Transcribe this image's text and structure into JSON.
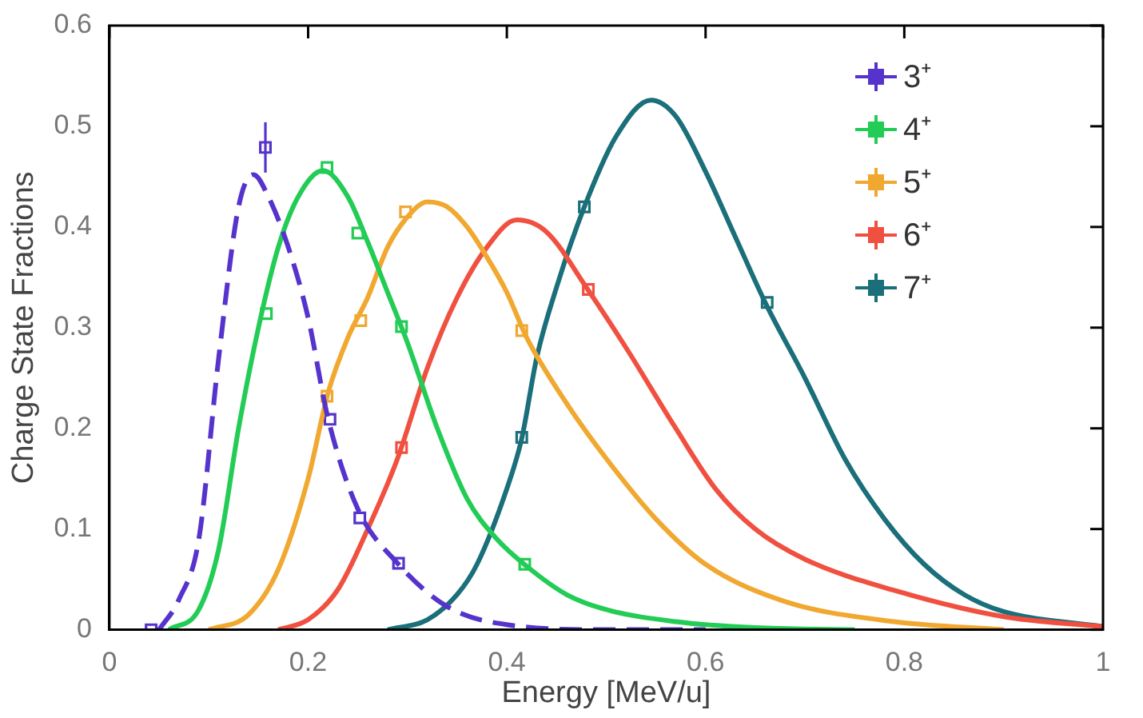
{
  "chart_data": {
    "type": "scatter",
    "xlabel": "Energy [MeV/u]",
    "ylabel": "Charge State Fractions",
    "xlim": [
      0,
      1
    ],
    "ylim": [
      0,
      0.6
    ],
    "xticks": [
      0,
      0.2,
      0.4,
      0.6,
      0.8,
      1
    ],
    "yticks": [
      0,
      0.1,
      0.2,
      0.3,
      0.4,
      0.5,
      0.6
    ],
    "grid": false,
    "legend": "top right",
    "series": [
      {
        "type": "line",
        "color": "#5533cc",
        "line_style": "dashed",
        "marker": "none",
        "x": [
          0.05,
          0.07,
          0.09,
          0.11,
          0.13,
          0.145,
          0.16,
          0.18,
          0.2,
          0.22,
          0.25,
          0.29,
          0.34,
          0.4,
          0.5,
          0.6
        ],
        "values": [
          0,
          0.03,
          0.09,
          0.27,
          0.42,
          0.452,
          0.43,
          0.38,
          0.31,
          0.21,
          0.12,
          0.066,
          0.023,
          0.005,
          0,
          0
        ]
      },
      {
        "type": "line",
        "color": "#22cc55",
        "line_style": "solid",
        "marker": "none",
        "x": [
          0.06,
          0.09,
          0.11,
          0.13,
          0.15,
          0.17,
          0.19,
          0.215,
          0.24,
          0.26,
          0.28,
          0.3,
          0.33,
          0.36,
          0.39,
          0.42,
          0.46,
          0.5,
          0.57,
          0.65,
          0.75
        ],
        "values": [
          0,
          0.02,
          0.08,
          0.2,
          0.3,
          0.38,
          0.43,
          0.456,
          0.43,
          0.385,
          0.335,
          0.285,
          0.2,
          0.13,
          0.09,
          0.063,
          0.035,
          0.02,
          0.008,
          0.002,
          0
        ]
      },
      {
        "type": "line",
        "color": "#f0a830",
        "line_style": "solid",
        "marker": "none",
        "x": [
          0.1,
          0.14,
          0.17,
          0.2,
          0.22,
          0.24,
          0.26,
          0.28,
          0.3,
          0.32,
          0.34,
          0.36,
          0.38,
          0.4,
          0.42,
          0.46,
          0.5,
          0.55,
          0.6,
          0.68,
          0.79,
          0.9
        ],
        "values": [
          0,
          0.015,
          0.06,
          0.15,
          0.235,
          0.29,
          0.33,
          0.38,
          0.41,
          0.425,
          0.42,
          0.4,
          0.37,
          0.335,
          0.29,
          0.225,
          0.17,
          0.11,
          0.065,
          0.028,
          0.008,
          0
        ]
      },
      {
        "type": "line",
        "color": "#f05040",
        "line_style": "solid",
        "marker": "none",
        "x": [
          0.17,
          0.2,
          0.23,
          0.26,
          0.29,
          0.32,
          0.35,
          0.38,
          0.41,
          0.44,
          0.48,
          0.52,
          0.57,
          0.61,
          0.65,
          0.7,
          0.79,
          0.9,
          1
        ],
        "values": [
          0,
          0.01,
          0.04,
          0.1,
          0.17,
          0.26,
          0.33,
          0.38,
          0.407,
          0.395,
          0.34,
          0.28,
          0.2,
          0.14,
          0.1,
          0.07,
          0.039,
          0.013,
          0.003
        ]
      },
      {
        "type": "line",
        "color": "#1a6f7a",
        "line_style": "solid",
        "marker": "none",
        "x": [
          0.28,
          0.32,
          0.35,
          0.37,
          0.4,
          0.415,
          0.43,
          0.45,
          0.478,
          0.51,
          0.545,
          0.57,
          0.6,
          0.63,
          0.66,
          0.7,
          0.74,
          0.78,
          0.82,
          0.86,
          0.9,
          1
        ],
        "values": [
          0,
          0.01,
          0.035,
          0.065,
          0.14,
          0.19,
          0.27,
          0.34,
          0.42,
          0.49,
          0.526,
          0.51,
          0.455,
          0.39,
          0.325,
          0.25,
          0.17,
          0.11,
          0.065,
          0.035,
          0.018,
          0.003
        ]
      },
      {
        "type": "scatter",
        "name": "3⁺",
        "color": "#5533cc",
        "marker": "square",
        "x": [
          0.042,
          0.157,
          0.222,
          0.252,
          0.291
        ],
        "values": [
          0,
          0.479,
          0.209,
          0.111,
          0.066
        ],
        "errors": [
          null,
          0.025,
          null,
          null,
          null
        ]
      },
      {
        "type": "scatter",
        "name": "4⁺",
        "color": "#22cc55",
        "marker": "square",
        "x": [
          0.158,
          0.219,
          0.25,
          0.294,
          0.418
        ],
        "values": [
          0.314,
          0.459,
          0.394,
          0.301,
          0.065
        ]
      },
      {
        "type": "scatter",
        "name": "5⁺",
        "color": "#f0a830",
        "marker": "square",
        "x": [
          0.219,
          0.253,
          0.298,
          0.415
        ],
        "values": [
          0.232,
          0.307,
          0.415,
          0.297
        ]
      },
      {
        "type": "scatter",
        "name": "6⁺",
        "color": "#f05040",
        "marker": "square",
        "x": [
          0.294,
          0.482
        ],
        "values": [
          0.181,
          0.338
        ]
      },
      {
        "type": "scatter",
        "name": "7⁺",
        "color": "#1a6f7a",
        "marker": "square",
        "x": [
          0.415,
          0.478,
          0.662
        ],
        "values": [
          0.191,
          0.42,
          0.325
        ]
      }
    ]
  }
}
